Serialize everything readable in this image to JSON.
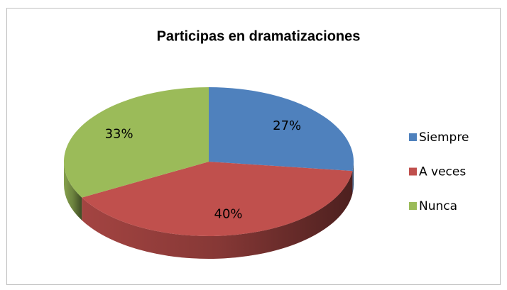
{
  "chart_data": {
    "type": "pie",
    "title": "Participas en dramatizaciones",
    "categories": [
      "Siempre",
      "A veces",
      "Nunca"
    ],
    "values": [
      27,
      40,
      33
    ],
    "value_labels": [
      "27%",
      "40%",
      "33%"
    ],
    "colors": [
      "#4f81bd",
      "#c0504d",
      "#9bbb59"
    ],
    "legend": "right"
  }
}
